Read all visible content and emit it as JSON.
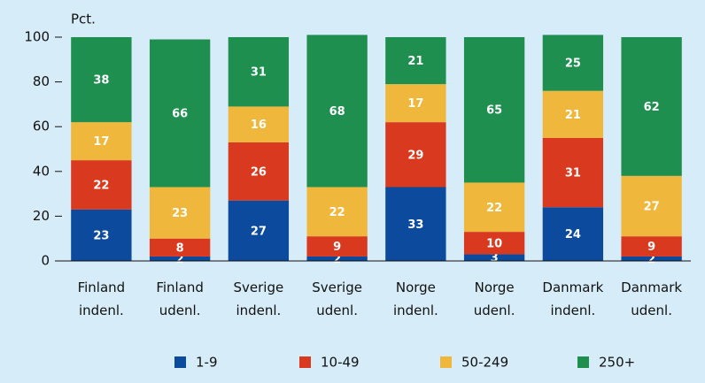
{
  "chart_data": {
    "type": "stacked_bar",
    "y_axis_label": "Pct.",
    "categories": [
      "Finland indenl.",
      "Finland udenl.",
      "Sverige indenl.",
      "Sverige udenl.",
      "Norge indenl.",
      "Norge udenl.",
      "Danmark indenl.",
      "Danmark udenl."
    ],
    "series": [
      {
        "name": "1-9",
        "color": "#0b4a9c",
        "values": [
          23,
          2,
          27,
          2,
          33,
          3,
          24,
          2
        ]
      },
      {
        "name": "10-49",
        "color": "#d8391f",
        "values": [
          22,
          8,
          26,
          9,
          29,
          10,
          31,
          9
        ]
      },
      {
        "name": "50-249",
        "color": "#efb83d",
        "values": [
          17,
          23,
          16,
          22,
          17,
          22,
          21,
          27
        ]
      },
      {
        "name": "250+",
        "color": "#1e8f4f",
        "values": [
          38,
          66,
          31,
          68,
          21,
          65,
          25,
          62
        ]
      }
    ],
    "ylim": [
      0,
      100
    ],
    "yticks": [
      0,
      20,
      40,
      60,
      80,
      100
    ],
    "grid": false,
    "legend": "bottom"
  }
}
